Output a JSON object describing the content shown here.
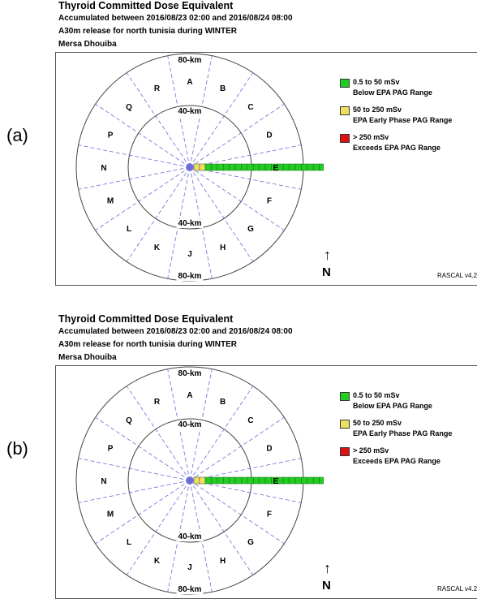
{
  "panels": [
    {
      "label": "(a)",
      "title": "Thyroid Committed Dose Equivalent",
      "accumulated": "Accumulated between 2016/08/23 02:00 and 2016/08/24 08:00",
      "release": "A30m release for north tunisia during WINTER",
      "site": "Mersa Dhouiba",
      "ring_labels": {
        "outer_top": "80-km",
        "inner_top": "40-km",
        "inner_bottom": "40-km",
        "outer_bottom": "80-km"
      },
      "sectors": [
        "A",
        "B",
        "C",
        "D",
        "E",
        "F",
        "G",
        "H",
        "J",
        "K",
        "L",
        "M",
        "N",
        "P",
        "Q",
        "R"
      ],
      "legend": [
        {
          "line1": "0.5 to 50 mSv",
          "line2": "Below EPA PAG Range",
          "color": "#22cc22"
        },
        {
          "line1": "50 to 250 mSv",
          "line2": "EPA Early Phase PAG Range",
          "color": "#f0e060"
        },
        {
          "line1": "> 250 mSv",
          "line2": "Exceeds EPA PAG Range",
          "color": "#dd1111"
        }
      ],
      "north": "N",
      "version": "RASCAL v4.2"
    },
    {
      "label": "(b)",
      "title": "Thyroid Committed Dose Equivalent",
      "accumulated": "Accumulated between 2016/08/23 02:00 and 2016/08/24 08:00",
      "release": "A30m release for north tunisia during WINTER",
      "site": "Mersa Dhouiba",
      "ring_labels": {
        "outer_top": "80-km",
        "inner_top": "40-km",
        "inner_bottom": "40-km",
        "outer_bottom": "80-km"
      },
      "sectors": [
        "A",
        "B",
        "C",
        "D",
        "E",
        "F",
        "G",
        "H",
        "J",
        "K",
        "L",
        "M",
        "N",
        "P",
        "Q",
        "R"
      ],
      "legend": [
        {
          "line1": "0.5 to 50 mSv",
          "line2": "Below EPA PAG Range",
          "color": "#22cc22"
        },
        {
          "line1": "50 to 250 mSv",
          "line2": "EPA Early Phase PAG Range",
          "color": "#f0e060"
        },
        {
          "line1": "> 250 mSv",
          "line2": "Exceeds EPA PAG Range",
          "color": "#dd1111"
        }
      ],
      "north": "N",
      "version": "RASCAL v4.2"
    }
  ]
}
